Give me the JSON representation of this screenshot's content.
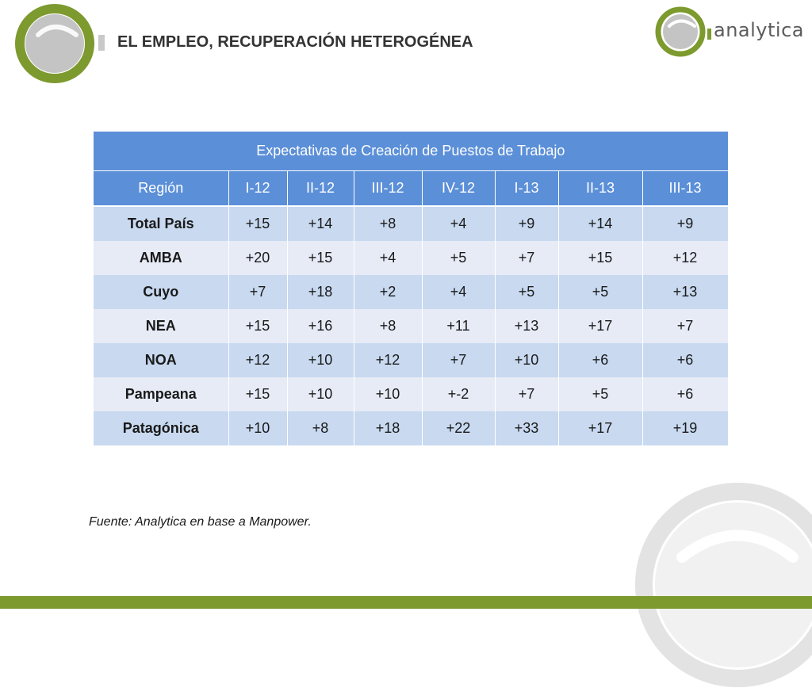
{
  "header": {
    "title": "EL EMPLEO,  RECUPERACIÓN HETEROGÉNEA",
    "brand": "analytica",
    "colors": {
      "accent_green": "#7d9a2e",
      "table_header_blue": "#5b8fd8",
      "row_dark": "#c8d9f0",
      "row_light": "#e6ebf6"
    }
  },
  "table": {
    "caption": "Expectativas de Creación de Puestos de Trabajo",
    "columns": [
      "Región",
      "I-12",
      "II-12",
      "III-12",
      "IV-12",
      "I-13",
      "II-13",
      "III-13"
    ],
    "rows": [
      {
        "region": "Total País",
        "values": [
          "+15",
          "+14",
          "+8",
          "+4",
          "+9",
          "+14",
          "+9"
        ]
      },
      {
        "region": "AMBA",
        "values": [
          "+20",
          "+15",
          "+4",
          "+5",
          "+7",
          "+15",
          "+12"
        ]
      },
      {
        "region": "Cuyo",
        "values": [
          "+7",
          "+18",
          "+2",
          "+4",
          "+5",
          "+5",
          "+13"
        ]
      },
      {
        "region": "NEA",
        "values": [
          "+15",
          "+16",
          "+8",
          "+11",
          "+13",
          "+17",
          "+7"
        ]
      },
      {
        "region": "NOA",
        "values": [
          "+12",
          "+10",
          "+12",
          "+7",
          "+10",
          "+6",
          "+6"
        ]
      },
      {
        "region": "Pampeana",
        "values": [
          "+15",
          "+10",
          "+10",
          "+-2",
          "+7",
          "+5",
          "+6"
        ]
      },
      {
        "region": "Patagónica",
        "values": [
          "+10",
          "+8",
          "+18",
          "+22",
          "+33",
          "+17",
          "+19"
        ]
      }
    ]
  },
  "footer": {
    "source": "Fuente: Analytica en base a Manpower."
  }
}
